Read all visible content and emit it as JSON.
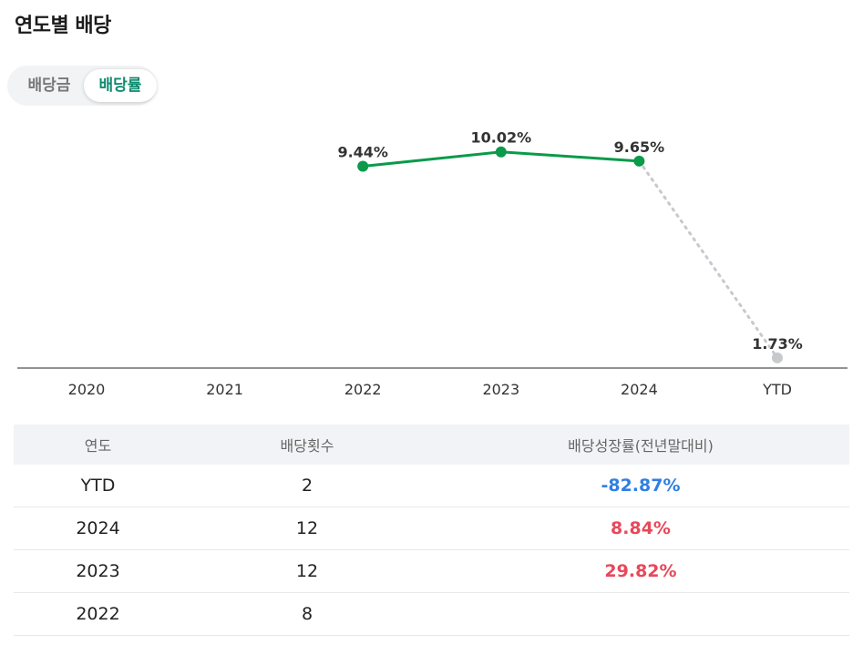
{
  "title": "연도별 배당",
  "toggle": {
    "left": "배당금",
    "right": "배당률",
    "active": "배당률"
  },
  "colors": {
    "line": "#0a9a4a",
    "dot": "#0a9a4a",
    "ytd_dot": "#c7c9cd",
    "positive": "#e8485a",
    "negative": "#2f7fe3",
    "accent": "#0f8a6e"
  },
  "chart_data": {
    "type": "line",
    "categories": [
      "2020",
      "2021",
      "2022",
      "2023",
      "2024",
      "YTD"
    ],
    "series": [
      {
        "values": [
          null,
          null,
          9.44,
          10.02,
          9.65,
          1.73
        ]
      }
    ],
    "labels": [
      "",
      "",
      "9.44%",
      "10.02%",
      "9.65%",
      "1.73%"
    ],
    "ylim": [
      0,
      11
    ],
    "grid": false,
    "note": ""
  },
  "table": {
    "headers": [
      "연도",
      "배당횟수",
      "배당성장률(전년말대비)"
    ],
    "rows": [
      {
        "year": "YTD",
        "count": "2",
        "growth": "-82.87%",
        "sign": "neg"
      },
      {
        "year": "2024",
        "count": "12",
        "growth": "8.84%",
        "sign": "pos"
      },
      {
        "year": "2023",
        "count": "12",
        "growth": "29.82%",
        "sign": "pos"
      },
      {
        "year": "2022",
        "count": "8",
        "growth": "",
        "sign": ""
      }
    ]
  }
}
